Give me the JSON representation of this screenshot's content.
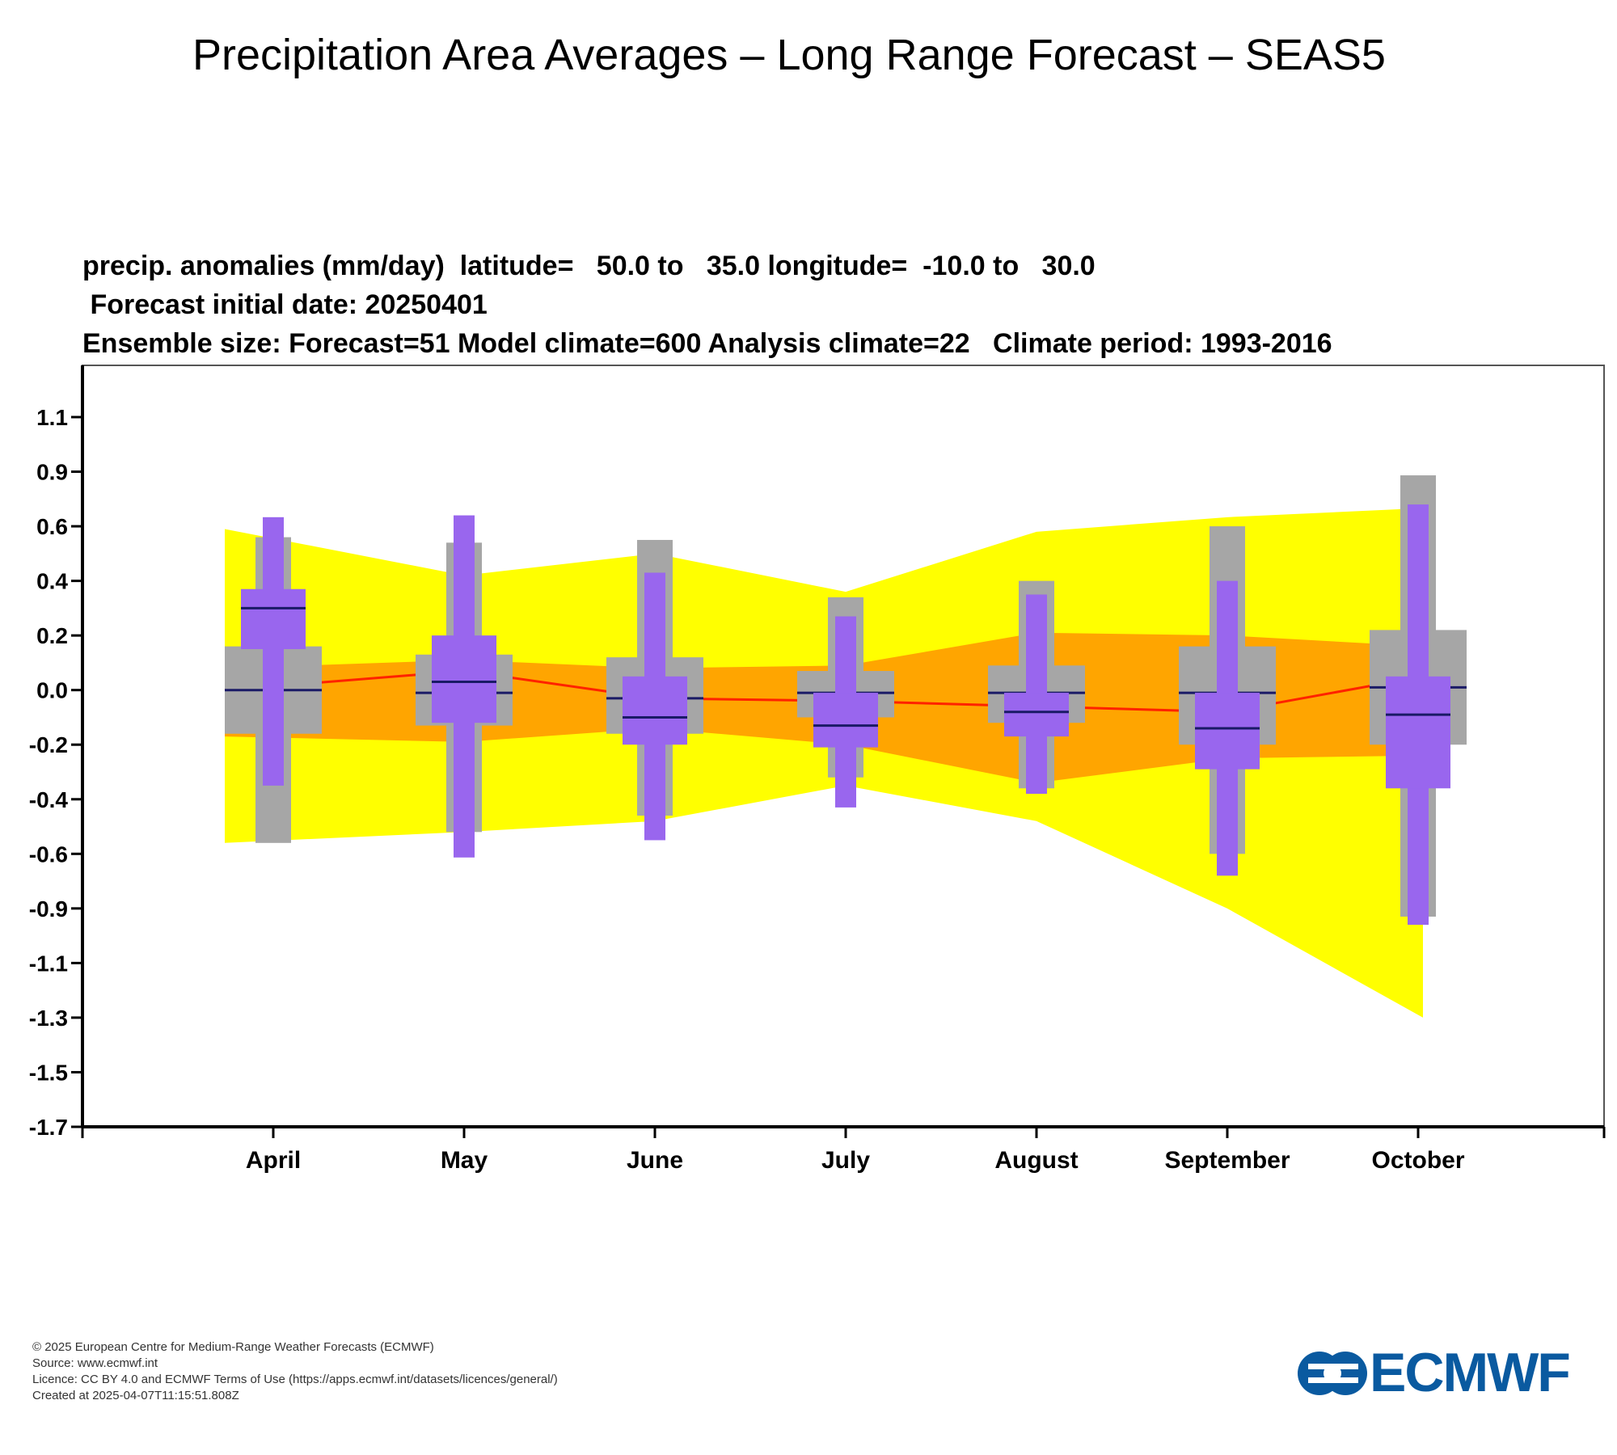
{
  "title": "Precipitation Area Averages – Long Range Forecast – SEAS5",
  "header_lines": [
    "precip. anomalies (mm/day)  latitude=   50.0 to   35.0 longitude=  -10.0 to   30.0",
    " Forecast initial date: 20250401",
    "Ensemble size: Forecast=51 Model climate=600 Analysis climate=22   Climate period: 1993-2016"
  ],
  "colors": {
    "outer_band": "#ffff00",
    "inner_band": "#ffa500",
    "climate_box": "#a6a6a6",
    "forecast_box": "#9966ee",
    "median_line": "#1a1a66",
    "climate_median": "#ff2200",
    "axis": "#000000",
    "logo": "#0a5aa0"
  },
  "chart_data": {
    "type": "box",
    "categories": [
      "April",
      "May",
      "June",
      "July",
      "August",
      "September",
      "October"
    ],
    "y_ticks": [
      "1.1",
      "0.9",
      "0.6",
      "0.4",
      "0.2",
      "0.0",
      "-0.2",
      "-0.4",
      "-0.6",
      "-0.9",
      "-1.1",
      "-1.3",
      "-1.5",
      "-1.7"
    ],
    "ylim": [
      -1.7,
      1.1
    ],
    "grid": false,
    "climate_outer_band": {
      "upper": [
        0.59,
        0.42,
        0.5,
        0.36,
        0.58,
        0.65,
        0.7
      ],
      "lower": [
        -0.56,
        -0.52,
        -0.48,
        -0.35,
        -0.48,
        -0.9,
        -1.3
      ]
    },
    "climate_inner_band": {
      "upper": [
        0.08,
        0.11,
        0.08,
        0.09,
        0.21,
        0.2,
        0.16
      ],
      "lower": [
        -0.17,
        -0.19,
        -0.14,
        -0.2,
        -0.34,
        -0.25,
        -0.24
      ]
    },
    "climate_median": [
      0.0,
      0.07,
      -0.03,
      -0.04,
      -0.06,
      -0.08,
      0.05
    ],
    "model_climate": [
      {
        "min": -0.56,
        "q1": -0.16,
        "median": 0.0,
        "q3": 0.16,
        "max": 0.56
      },
      {
        "min": -0.52,
        "q1": -0.13,
        "median": -0.01,
        "q3": 0.13,
        "max": 0.54
      },
      {
        "min": -0.46,
        "q1": -0.16,
        "median": -0.03,
        "q3": 0.12,
        "max": 0.55
      },
      {
        "min": -0.32,
        "q1": -0.1,
        "median": -0.01,
        "q3": 0.07,
        "max": 0.34
      },
      {
        "min": -0.36,
        "q1": -0.12,
        "median": -0.01,
        "q3": 0.09,
        "max": 0.4
      },
      {
        "min": -0.6,
        "q1": -0.2,
        "median": -0.01,
        "q3": 0.16,
        "max": 0.6
      },
      {
        "min": -0.93,
        "q1": -0.2,
        "median": 0.01,
        "q3": 0.22,
        "max": 0.88
      }
    ],
    "forecast": [
      {
        "min": -0.35,
        "q1": 0.15,
        "median": 0.3,
        "q3": 0.37,
        "max": 0.65
      },
      {
        "min": -0.62,
        "q1": -0.12,
        "median": 0.03,
        "q3": 0.2,
        "max": 0.66
      },
      {
        "min": -0.55,
        "q1": -0.2,
        "median": -0.1,
        "q3": 0.05,
        "max": 0.43
      },
      {
        "min": -0.43,
        "q1": -0.21,
        "median": -0.13,
        "q3": -0.01,
        "max": 0.27
      },
      {
        "min": -0.38,
        "q1": -0.17,
        "median": -0.08,
        "q3": -0.01,
        "max": 0.35
      },
      {
        "min": -0.72,
        "q1": -0.29,
        "median": -0.14,
        "q3": -0.01,
        "max": 0.4
      },
      {
        "min": -0.96,
        "q1": -0.36,
        "median": -0.09,
        "q3": 0.05,
        "max": 0.72
      }
    ]
  },
  "footer": {
    "copyright": "© 2025 European Centre for Medium-Range Weather Forecasts (ECMWF)",
    "source": "Source: www.ecmwf.int",
    "licence": "Licence: CC BY 4.0 and ECMWF Terms of Use (https://apps.ecmwf.int/datasets/licences/general/)",
    "created": "Created at 2025-04-07T11:15:51.808Z"
  },
  "logo": {
    "text": "ECMWF"
  }
}
